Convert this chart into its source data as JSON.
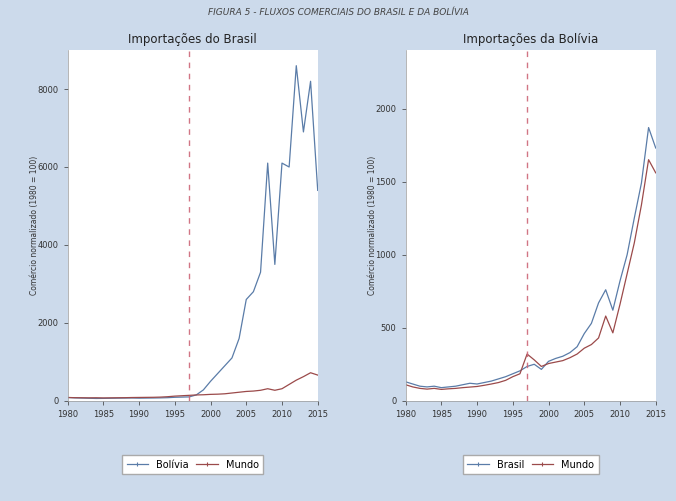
{
  "title": "FIGURA 5 - FLUXOS COMERCIAIS DO BRASIL E DA BOLÍVIA",
  "left_title": "Importações do Brasil",
  "right_title": "Importações da Bolívia",
  "ylabel": "Comércio normalizado (1980 = 100)",
  "dashed_line_x": 1997,
  "fig_bg_color": "#ccdaeb",
  "plot_bg_color": "#ffffff",
  "blue_color": "#5a7ca8",
  "red_color": "#9b4a4a",
  "left_legend": [
    "Bolívia",
    "Mundo"
  ],
  "right_legend": [
    "Brasil",
    "Mundo"
  ],
  "years": [
    1980,
    1981,
    1982,
    1983,
    1984,
    1985,
    1986,
    1987,
    1988,
    1989,
    1990,
    1991,
    1992,
    1993,
    1994,
    1995,
    1996,
    1997,
    1998,
    1999,
    2000,
    2001,
    2002,
    2003,
    2004,
    2005,
    2006,
    2007,
    2008,
    2009,
    2010,
    2011,
    2012,
    2013,
    2014,
    2015
  ],
  "left_blue": [
    85,
    75,
    70,
    65,
    60,
    62,
    65,
    68,
    70,
    72,
    68,
    70,
    72,
    75,
    80,
    90,
    95,
    100,
    150,
    280,
    500,
    700,
    900,
    1100,
    1600,
    2600,
    2800,
    3300,
    6100,
    3500,
    6100,
    6000,
    8600,
    6900,
    8200,
    5400
  ],
  "left_red": [
    85,
    80,
    78,
    76,
    78,
    74,
    76,
    78,
    80,
    84,
    86,
    88,
    90,
    95,
    105,
    120,
    130,
    140,
    150,
    155,
    165,
    170,
    180,
    200,
    220,
    240,
    250,
    270,
    310,
    270,
    310,
    420,
    530,
    620,
    720,
    660
  ],
  "right_blue": [
    130,
    115,
    100,
    95,
    100,
    90,
    95,
    100,
    110,
    120,
    115,
    125,
    135,
    150,
    165,
    185,
    205,
    235,
    250,
    215,
    270,
    290,
    305,
    330,
    370,
    460,
    530,
    670,
    760,
    620,
    820,
    1000,
    1250,
    1490,
    1870,
    1730
  ],
  "right_red": [
    110,
    95,
    85,
    80,
    85,
    78,
    82,
    85,
    90,
    94,
    98,
    106,
    115,
    125,
    140,
    165,
    185,
    320,
    280,
    235,
    255,
    265,
    275,
    295,
    320,
    360,
    385,
    430,
    580,
    465,
    660,
    870,
    1080,
    1340,
    1650,
    1560
  ],
  "left_ylim": [
    0,
    9000
  ],
  "left_yticks": [
    0,
    2000,
    4000,
    6000,
    8000
  ],
  "right_ylim": [
    0,
    2400
  ],
  "right_yticks": [
    0,
    500,
    1000,
    1500,
    2000
  ],
  "xlim": [
    1980,
    2015
  ],
  "xticks": [
    1980,
    1985,
    1990,
    1995,
    2000,
    2005,
    2010,
    2015
  ]
}
